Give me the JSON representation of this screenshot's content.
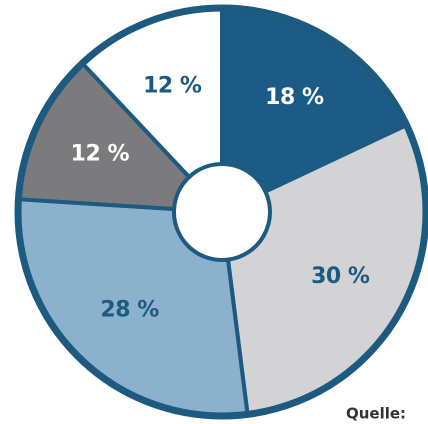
{
  "chart_data": {
    "type": "pie",
    "categories": [
      null,
      null,
      null,
      null,
      null
    ],
    "values": [
      18,
      30,
      28,
      12,
      12
    ],
    "value_labels": [
      "18 %",
      "30 %",
      "28 %",
      "12 %",
      "12 %"
    ],
    "colors": [
      "#1c5b86",
      "#d3d3d5",
      "#8cb1cc",
      "#7b7b7d",
      "#ffffff"
    ],
    "source": "Quelle:"
  }
}
